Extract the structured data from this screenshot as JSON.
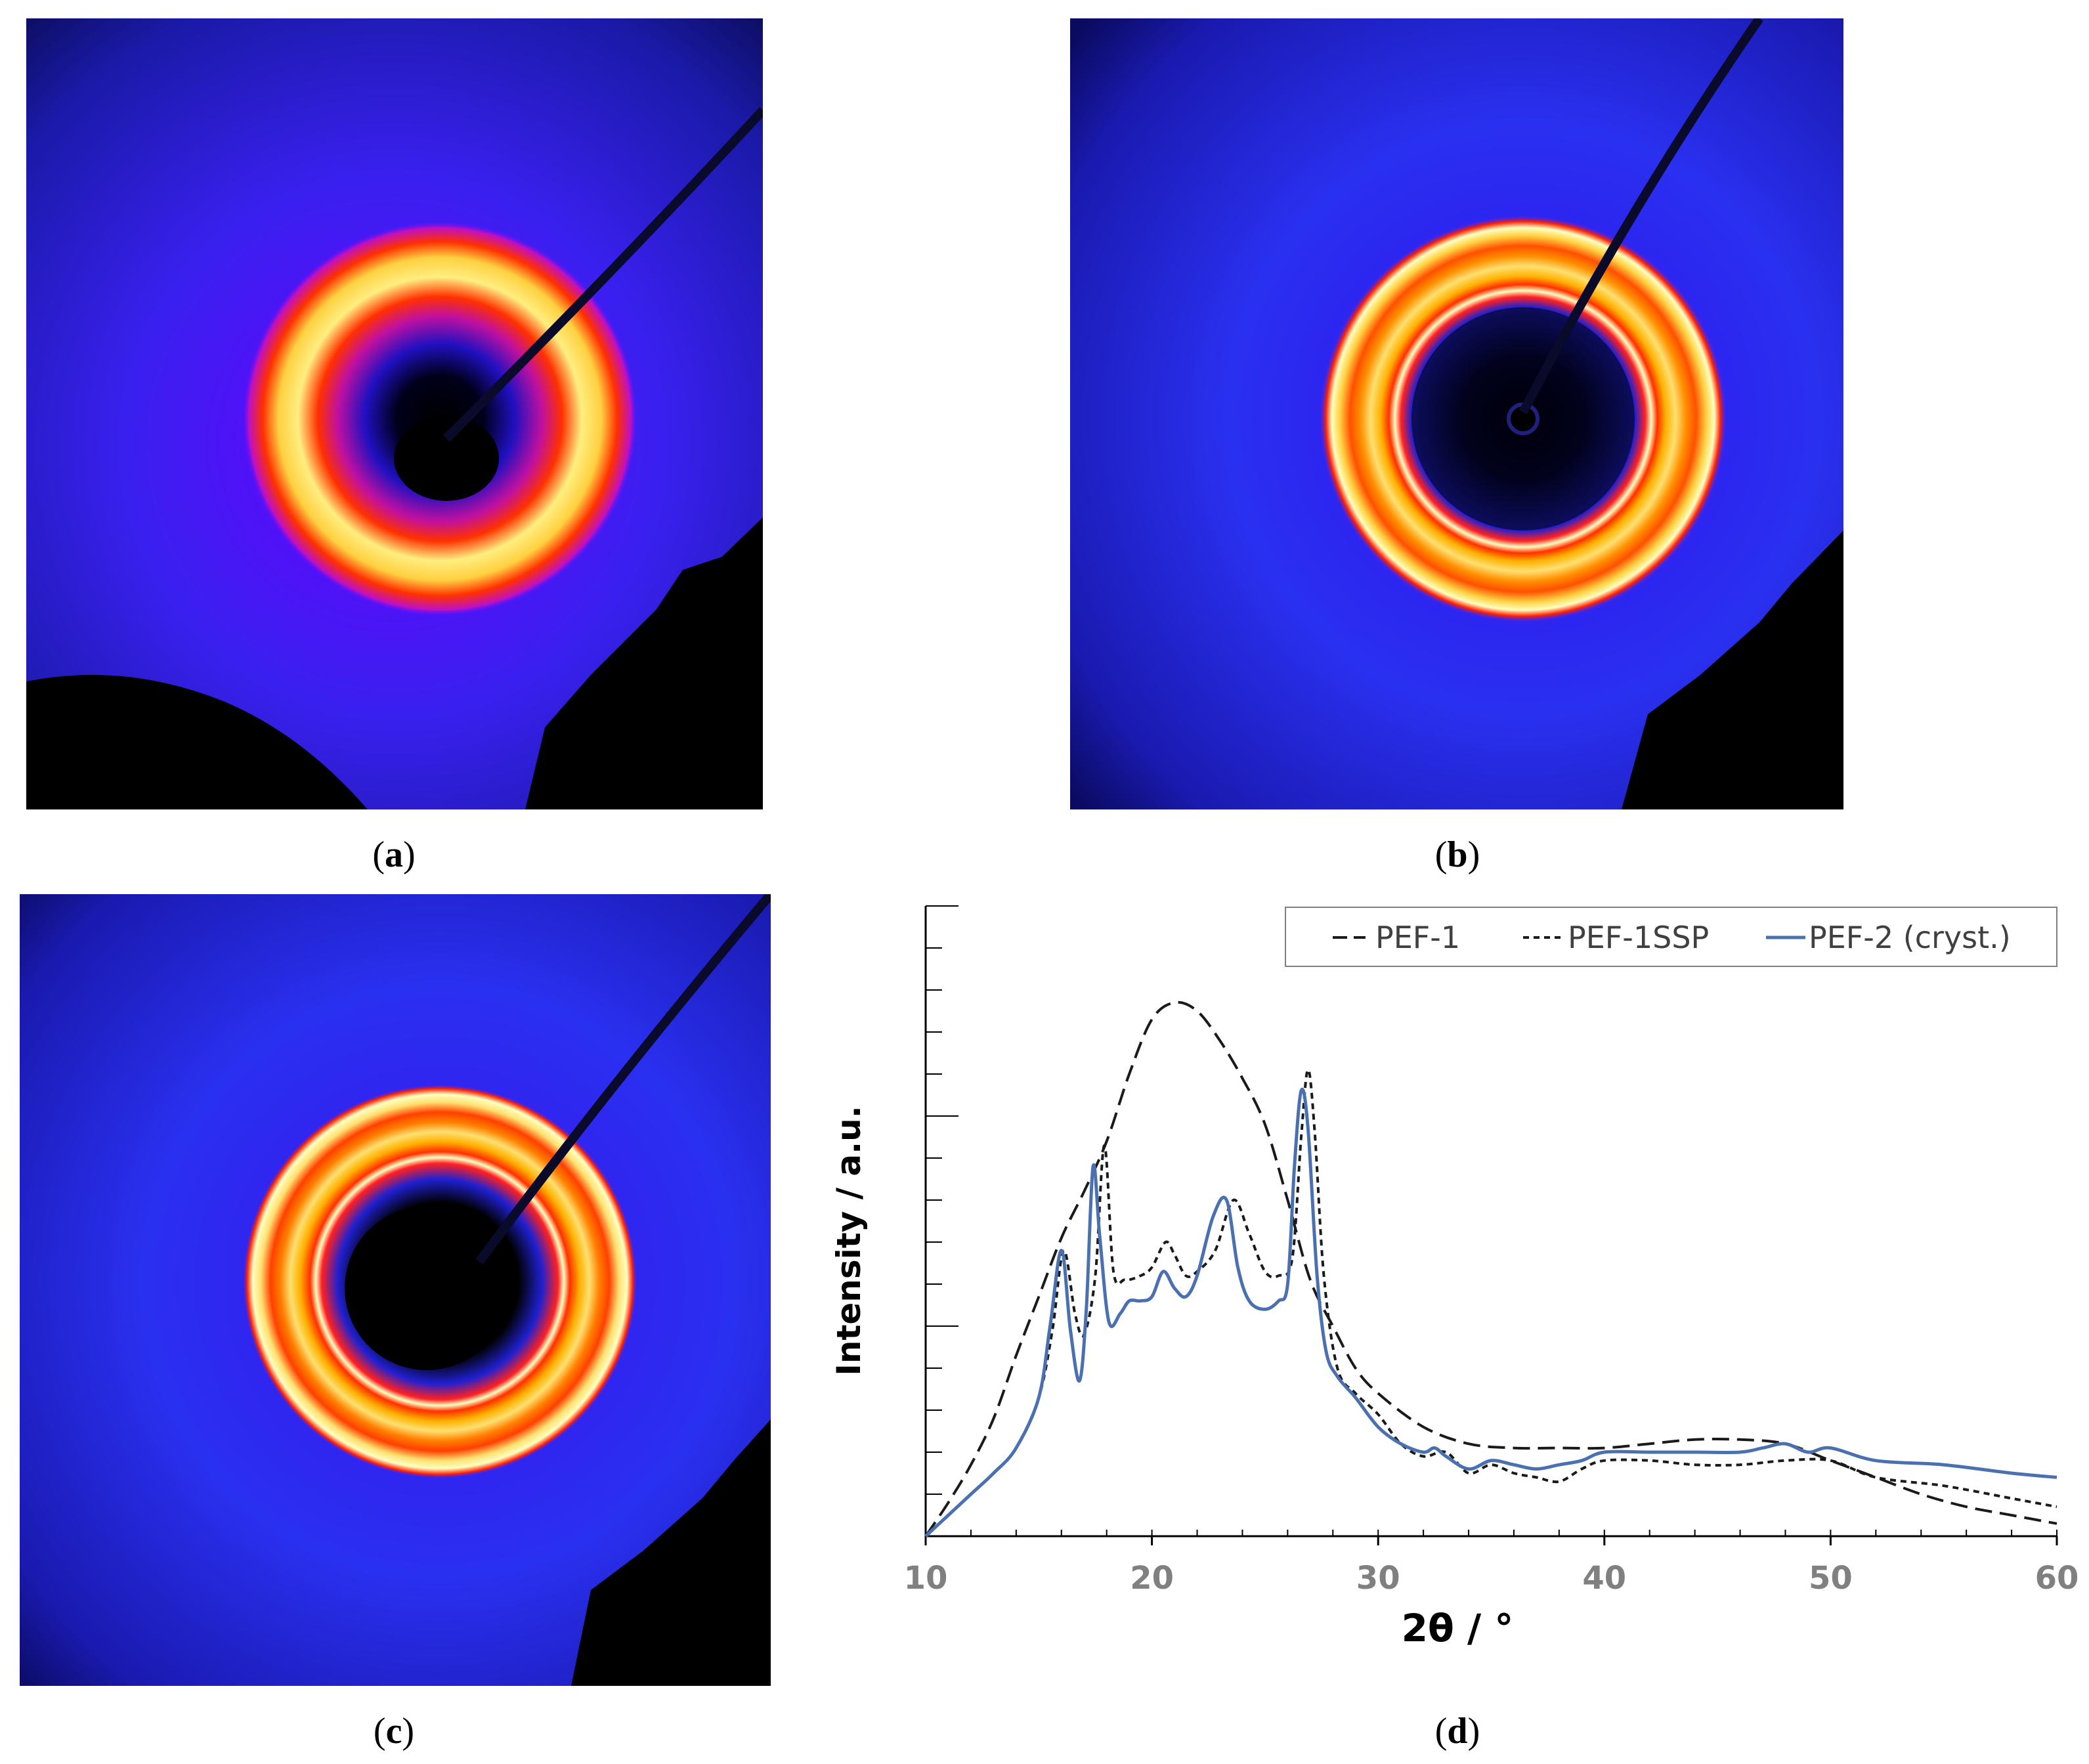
{
  "figure": {
    "panels": [
      {
        "id": "a",
        "caption": "a",
        "content": "2D WAXS diffraction pattern, amorphous halo"
      },
      {
        "id": "b",
        "caption": "b",
        "content": "2D WAXS diffraction pattern, crystalline rings"
      },
      {
        "id": "c",
        "caption": "c",
        "content": "2D WAXS diffraction pattern, crystalline rings"
      },
      {
        "id": "d",
        "caption": "d",
        "content": "1D intensity profiles"
      }
    ]
  },
  "colors": {
    "pef1": "#1a1a1a",
    "pef1ssp": "#1a1a1a",
    "pef2": "#4a70b0",
    "axis": "#000000",
    "tick_label": "#808080"
  },
  "chart_data": {
    "type": "line",
    "title": "",
    "xlabel": "2θ / °",
    "ylabel": "Intensity / a.u.",
    "xlim": [
      10,
      60
    ],
    "ylim": [
      0,
      150
    ],
    "x_ticks": [
      10,
      20,
      30,
      40,
      50,
      60
    ],
    "y_ticks_shown": false,
    "legend": {
      "position": "top-right",
      "entries": [
        {
          "label": "PEF-1",
          "style": "long-dash"
        },
        {
          "label": "PEF-1SSP",
          "style": "short-dash"
        },
        {
          "label": "PEF-2 (cryst.)",
          "style": "solid"
        }
      ]
    },
    "series": [
      {
        "name": "PEF-1",
        "x": [
          10,
          11,
          12,
          13,
          14,
          15,
          16,
          17,
          18,
          19,
          20,
          21,
          22,
          23,
          24,
          25,
          26,
          27,
          28,
          29,
          30,
          32,
          34,
          36,
          38,
          40,
          42,
          44,
          46,
          48,
          50,
          52,
          54,
          56,
          58,
          60
        ],
        "y": [
          0,
          8,
          17,
          28,
          43,
          57,
          71,
          82,
          94,
          110,
          123,
          127,
          125,
          118,
          109,
          98,
          80,
          61,
          50,
          40,
          34,
          26,
          22,
          21,
          21,
          21,
          22,
          23,
          23,
          22,
          18,
          14,
          10,
          7,
          5,
          3
        ]
      },
      {
        "name": "PEF-1SSP",
        "x": [
          10,
          11,
          12,
          13,
          14,
          15,
          15.6,
          16.1,
          16.6,
          17,
          17.5,
          17.9,
          18.3,
          18.8,
          19.5,
          20,
          20.6,
          21,
          21.5,
          22,
          22.8,
          23.6,
          24.3,
          25,
          25.6,
          26.2,
          26.6,
          26.9,
          27.2,
          27.6,
          28.2,
          29,
          30,
          31,
          32,
          33,
          34,
          35,
          36,
          37,
          38,
          39,
          40,
          42,
          44,
          46,
          48,
          50,
          52,
          55,
          58,
          60
        ],
        "y": [
          0,
          5,
          10,
          15,
          21,
          33,
          49,
          68,
          53,
          48,
          62,
          93,
          63,
          61,
          62,
          64,
          70,
          67,
          62,
          63,
          68,
          80,
          72,
          63,
          62,
          66,
          95,
          111,
          96,
          62,
          40,
          34,
          29,
          22,
          19,
          20,
          15,
          17,
          15,
          14,
          13,
          16,
          18,
          18,
          17,
          17,
          18,
          18,
          14,
          12,
          9,
          7
        ]
      },
      {
        "name": "PEF-2 (cryst.)",
        "x": [
          10,
          11,
          12,
          13,
          14,
          15,
          15.5,
          16,
          16.4,
          16.8,
          17.1,
          17.4,
          17.7,
          18.1,
          18.6,
          19,
          19.5,
          20,
          20.5,
          21,
          21.5,
          22,
          22.7,
          23.3,
          23.8,
          24.3,
          25,
          25.6,
          26,
          26.3,
          26.6,
          26.9,
          27.3,
          27.7,
          28.2,
          29,
          30,
          31,
          32,
          32.5,
          33,
          34,
          35,
          36,
          37,
          38,
          39,
          40,
          42,
          44,
          46,
          47,
          48,
          49,
          50,
          52,
          55,
          58,
          60
        ],
        "y": [
          0,
          5,
          10,
          15,
          21,
          33,
          50,
          68,
          49,
          37,
          54,
          88,
          71,
          51,
          53,
          56,
          56,
          57,
          63,
          59,
          57,
          62,
          76,
          80,
          64,
          56,
          54,
          56,
          60,
          88,
          106,
          97,
          62,
          44,
          38,
          33,
          26,
          22,
          20,
          21,
          19,
          16,
          18,
          17,
          16,
          17,
          18,
          20,
          20,
          20,
          20,
          21,
          22,
          20,
          21,
          18,
          17,
          15,
          14
        ]
      }
    ]
  }
}
